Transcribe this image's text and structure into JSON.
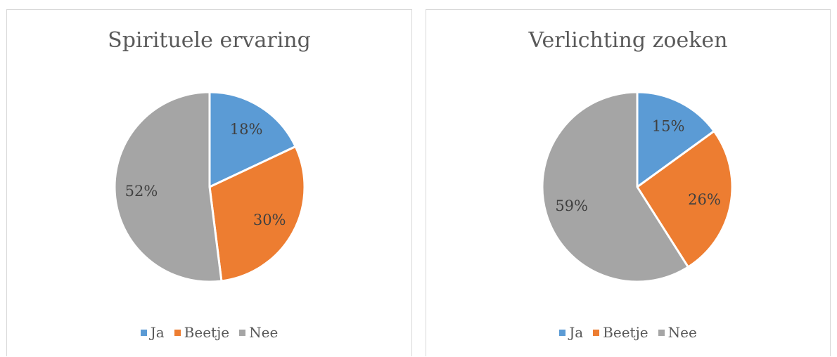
{
  "colors": {
    "Ja": "#5b9bd5",
    "Beetje": "#ed7d31",
    "Nee": "#a5a5a5"
  },
  "chart_data": [
    {
      "type": "pie",
      "title": "Spirituele ervaring",
      "categories": [
        "Ja",
        "Beetje",
        "Nee"
      ],
      "values": [
        18,
        30,
        52
      ],
      "value_labels": [
        "18%",
        "30%",
        "52%"
      ],
      "legend": "bottom"
    },
    {
      "type": "pie",
      "title": "Verlichting zoeken",
      "categories": [
        "Ja",
        "Beetje",
        "Nee"
      ],
      "values": [
        15,
        26,
        59
      ],
      "value_labels": [
        "15%",
        "26%",
        "59%"
      ],
      "legend": "bottom"
    }
  ]
}
